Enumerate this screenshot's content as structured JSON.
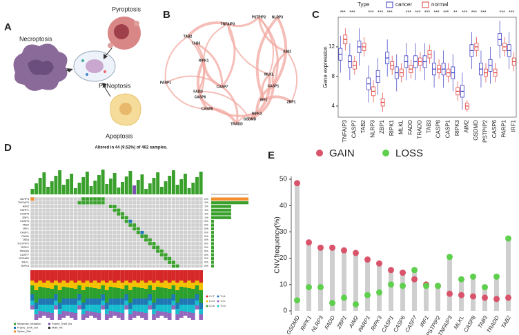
{
  "panel_labels": [
    "A",
    "B",
    "C",
    "D",
    "E"
  ],
  "diagram_a": {
    "labels": [
      "Necroptosis",
      "Pyroptosis",
      "PANoptosis",
      "Apoptosis"
    ]
  },
  "network_b": {
    "nodes": [
      "TNFAIP3",
      "PSTPIP2",
      "NLRP3",
      "TAB2",
      "TAB3",
      "RIPK1",
      "AIM2",
      "MLKL",
      "PARP1",
      "CASP7",
      "CASP1",
      "FADD",
      "CASP6",
      "IRF1",
      "ZBP1",
      "CASP8",
      "RIPK3",
      "GSDMD",
      "TRADD"
    ]
  },
  "oncoplot_d": {
    "title": "Altered in 44 (9.52%) of 462 samples.",
    "genes": [
      "NLRP3",
      "TNFAIP3",
      "AIM2",
      "PARP1",
      "CASP8",
      "ZBP1",
      "CASP6",
      "TAB2",
      "IRF1",
      "CASP1",
      "FADD",
      "TAB3",
      "PSTPIP2",
      "RIPK1",
      "TRADD",
      "CASP7",
      "GSDMD",
      "MLKL",
      "RIPK3"
    ],
    "alteration_pct": [
      2,
      2,
      1,
      1,
      1,
      1,
      0,
      0,
      0,
      0,
      0,
      0,
      0,
      0,
      0,
      0,
      0,
      0,
      0
    ],
    "pct_labels": [
      "2%",
      "2%",
      "1%",
      "1%",
      "1%",
      "1%",
      "0%",
      "0%",
      "0%",
      "0%",
      "0%",
      "0%",
      "0%",
      "0%",
      "0%",
      "0%",
      "0%",
      "0%",
      "0%"
    ],
    "variant_legend": [
      "Missense_Mutation",
      "Frame_Shift_Ins",
      "Frame_Shift_Del",
      "Multi_Hit",
      "Splice_Site"
    ],
    "snv_legend": [
      "C>T",
      "T>A",
      "C>G",
      "T>C",
      "C>A",
      "T>G"
    ]
  },
  "chart_data": [
    {
      "type": "box",
      "y_label": "Gene expression",
      "legend_title": "Type",
      "categories": [
        "TNFAIP3",
        "CASP7",
        "TAB2",
        "NLRP3",
        "ZBP1",
        "RIPK1",
        "MLKL",
        "FADD",
        "TRADD",
        "TAB3",
        "CASP8",
        "CASP1",
        "RIPK3",
        "AIM2",
        "GSDMD",
        "PSTPIP2",
        "CASP6",
        "PARP1",
        "IRF1"
      ],
      "significance": [
        "***",
        "***",
        null,
        "***",
        "***",
        "***",
        null,
        "***",
        "***",
        "***",
        "***",
        "***",
        "**",
        "***",
        "***",
        "***",
        null,
        "***",
        "***"
      ],
      "ylim": [
        2.5,
        16
      ],
      "yticks": [
        4,
        8,
        12
      ],
      "series": [
        {
          "name": "cancer",
          "color": "#3b3bc4",
          "values": [
            11,
            10,
            12,
            7,
            8,
            10.5,
            8.5,
            10,
            10,
            10,
            9,
            9,
            8.5,
            6,
            11.5,
            9,
            9.5,
            13,
            11.5
          ],
          "q1": [
            10.2,
            9.2,
            11.2,
            6.2,
            7.2,
            9.7,
            7.7,
            9.2,
            9.2,
            9.2,
            8.2,
            8.2,
            7.7,
            5.2,
            10.7,
            8.2,
            8.7,
            12.2,
            10.7
          ],
          "q3": [
            11.8,
            10.8,
            12.8,
            7.8,
            8.8,
            11.3,
            9.3,
            10.8,
            10.8,
            10.8,
            9.8,
            9.8,
            9.3,
            6.8,
            12.3,
            9.8,
            10.3,
            13.8,
            12.3
          ],
          "whisker_low": [
            8.5,
            7.5,
            9.5,
            4.5,
            5.5,
            8,
            6,
            7.5,
            7.5,
            7.5,
            6.5,
            6.5,
            6,
            3.5,
            9,
            6.5,
            7,
            10.5,
            9
          ],
          "whisker_high": [
            13.5,
            12.5,
            14.5,
            9.5,
            10.5,
            13,
            11,
            12.5,
            12.5,
            12.5,
            11.5,
            11.5,
            11,
            8.5,
            14,
            11.5,
            12,
            15.5,
            14
          ]
        },
        {
          "name": "normal",
          "color": "#e0403a",
          "values": [
            13,
            9.5,
            12,
            6,
            4.5,
            9.5,
            8.5,
            9,
            10,
            11,
            9,
            8.5,
            6,
            4,
            12,
            8.5,
            8.5,
            12,
            10
          ],
          "q1": [
            12.4,
            9,
            11.5,
            5.4,
            4,
            9,
            8,
            8.5,
            9.5,
            10.5,
            8.5,
            8,
            5.5,
            3.6,
            11.5,
            8,
            8,
            11.5,
            9.5
          ],
          "q3": [
            13.6,
            10,
            12.5,
            6.6,
            5,
            10,
            9,
            9.5,
            10.5,
            11.5,
            9.5,
            9,
            6.5,
            4.4,
            12.5,
            9,
            9,
            12.5,
            10.5
          ],
          "whisker_low": [
            11.5,
            8.2,
            10.7,
            4.5,
            3.2,
            8.2,
            7.2,
            7.7,
            8.7,
            9.7,
            7.7,
            7.2,
            4.7,
            3.2,
            10.7,
            7.2,
            7.2,
            10.7,
            8.7
          ],
          "whisker_high": [
            14.5,
            10.8,
            13.3,
            7.5,
            5.8,
            10.8,
            9.8,
            10.3,
            11.3,
            12.3,
            10.3,
            9.8,
            7.3,
            4.8,
            13.3,
            9.8,
            9.8,
            13.3,
            11.3
          ]
        }
      ]
    },
    {
      "type": "dumbbell",
      "y_label": "CNV.frequency(%)",
      "categories": [
        "GSDMD",
        "RIPK1",
        "NLRP3",
        "FADD",
        "ZBP1",
        "AIM2",
        "PARP1",
        "RIPK3",
        "CASP1",
        "CASP6",
        "CASP7",
        "IRF1",
        "PSTPIP2",
        "TNFAIP3",
        "MLKL",
        "CASP8",
        "TAB3",
        "TRADD",
        "TAB2"
      ],
      "ylim": [
        0,
        50
      ],
      "yticks": [
        0,
        10,
        20,
        30,
        40,
        50
      ],
      "series": [
        {
          "name": "GAIN",
          "color": "#d9536b",
          "values": [
            48.5,
            26,
            24,
            24,
            23,
            22,
            19.5,
            18,
            15.5,
            14.5,
            12,
            10,
            9.5,
            6.5,
            6,
            5.5,
            5,
            4.5,
            5
          ]
        },
        {
          "name": "LOSS",
          "color": "#5fcf4e",
          "values": [
            4,
            9,
            9,
            3,
            5,
            2.5,
            6,
            7,
            10,
            9.5,
            15.5,
            9.5,
            9.5,
            20.5,
            12,
            13,
            9,
            13,
            27.5
          ]
        }
      ]
    }
  ]
}
